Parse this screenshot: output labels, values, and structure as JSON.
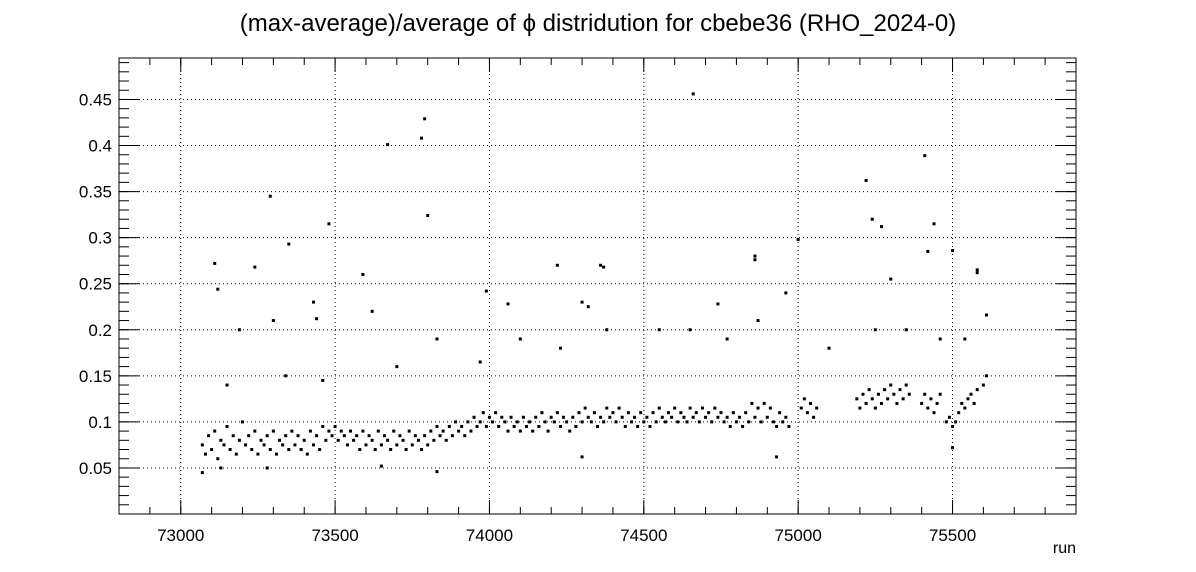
{
  "chart_data": {
    "type": "scatter",
    "title": "(max-average)/average of ϕ distridution for cbebe36 (RHO_2024-0)",
    "xlabel": "run",
    "ylabel": "",
    "xlim": [
      72800,
      75900
    ],
    "ylim": [
      0.0,
      0.495
    ],
    "x_ticks": [
      73000,
      73500,
      74000,
      74500,
      75000,
      75500
    ],
    "x_tick_labels": [
      "73000",
      "73500",
      "74000",
      "74500",
      "75000",
      "75500"
    ],
    "y_ticks": [
      0.05,
      0.1,
      0.15,
      0.2,
      0.25,
      0.3,
      0.35,
      0.4,
      0.45
    ],
    "y_tick_labels": [
      "0.05",
      "0.1",
      "0.15",
      "0.2",
      "0.25",
      "0.3",
      "0.35",
      "0.4",
      "0.45"
    ],
    "grid": true,
    "legend": "none",
    "marker_color": "#000000",
    "series": [
      {
        "values_note_free": true,
        "points": [
          [
            73070,
            0.075
          ],
          [
            73080,
            0.065
          ],
          [
            73090,
            0.085
          ],
          [
            73100,
            0.07
          ],
          [
            73110,
            0.09
          ],
          [
            73120,
            0.06
          ],
          [
            73130,
            0.08
          ],
          [
            73140,
            0.075
          ],
          [
            73150,
            0.095
          ],
          [
            73160,
            0.07
          ],
          [
            73170,
            0.085
          ],
          [
            73180,
            0.065
          ],
          [
            73190,
            0.08
          ],
          [
            73200,
            0.1
          ],
          [
            73210,
            0.075
          ],
          [
            73220,
            0.085
          ],
          [
            73230,
            0.07
          ],
          [
            73240,
            0.09
          ],
          [
            73250,
            0.065
          ],
          [
            73260,
            0.08
          ],
          [
            73270,
            0.075
          ],
          [
            73280,
            0.085
          ],
          [
            73290,
            0.07
          ],
          [
            73300,
            0.09
          ],
          [
            73310,
            0.065
          ],
          [
            73320,
            0.08
          ],
          [
            73330,
            0.075
          ],
          [
            73340,
            0.085
          ],
          [
            73350,
            0.07
          ],
          [
            73360,
            0.09
          ],
          [
            73370,
            0.075
          ],
          [
            73380,
            0.085
          ],
          [
            73390,
            0.07
          ],
          [
            73400,
            0.08
          ],
          [
            73410,
            0.065
          ],
          [
            73420,
            0.09
          ],
          [
            73430,
            0.075
          ],
          [
            73440,
            0.085
          ],
          [
            73450,
            0.07
          ],
          [
            73460,
            0.095
          ],
          [
            73470,
            0.08
          ],
          [
            73480,
            0.09
          ],
          [
            73490,
            0.085
          ],
          [
            73500,
            0.095
          ],
          [
            73510,
            0.08
          ],
          [
            73520,
            0.09
          ],
          [
            73530,
            0.085
          ],
          [
            73540,
            0.075
          ],
          [
            73550,
            0.09
          ],
          [
            73560,
            0.08
          ],
          [
            73570,
            0.085
          ],
          [
            73580,
            0.07
          ],
          [
            73590,
            0.09
          ],
          [
            73600,
            0.075
          ],
          [
            73610,
            0.085
          ],
          [
            73620,
            0.08
          ],
          [
            73630,
            0.07
          ],
          [
            73640,
            0.09
          ],
          [
            73650,
            0.075
          ],
          [
            73660,
            0.085
          ],
          [
            73670,
            0.08
          ],
          [
            73680,
            0.07
          ],
          [
            73690,
            0.09
          ],
          [
            73700,
            0.075
          ],
          [
            73710,
            0.085
          ],
          [
            73720,
            0.08
          ],
          [
            73730,
            0.07
          ],
          [
            73740,
            0.09
          ],
          [
            73750,
            0.075
          ],
          [
            73760,
            0.085
          ],
          [
            73770,
            0.08
          ],
          [
            73780,
            0.07
          ],
          [
            73790,
            0.085
          ],
          [
            73800,
            0.075
          ],
          [
            73810,
            0.09
          ],
          [
            73820,
            0.08
          ],
          [
            73830,
            0.095
          ],
          [
            73840,
            0.085
          ],
          [
            73850,
            0.09
          ],
          [
            73860,
            0.08
          ],
          [
            73870,
            0.095
          ],
          [
            73880,
            0.085
          ],
          [
            73890,
            0.1
          ],
          [
            73900,
            0.09
          ],
          [
            73910,
            0.095
          ],
          [
            73920,
            0.085
          ],
          [
            73930,
            0.1
          ],
          [
            73940,
            0.09
          ],
          [
            73950,
            0.105
          ],
          [
            73960,
            0.095
          ],
          [
            73970,
            0.1
          ],
          [
            73980,
            0.11
          ],
          [
            73990,
            0.095
          ],
          [
            74000,
            0.105
          ],
          [
            74010,
            0.1
          ],
          [
            74020,
            0.11
          ],
          [
            74030,
            0.095
          ],
          [
            74040,
            0.105
          ],
          [
            74050,
            0.1
          ],
          [
            74060,
            0.09
          ],
          [
            74070,
            0.105
          ],
          [
            74080,
            0.095
          ],
          [
            74090,
            0.1
          ],
          [
            74100,
            0.09
          ],
          [
            74110,
            0.105
          ],
          [
            74120,
            0.095
          ],
          [
            74130,
            0.1
          ],
          [
            74140,
            0.09
          ],
          [
            74150,
            0.105
          ],
          [
            74160,
            0.095
          ],
          [
            74170,
            0.11
          ],
          [
            74180,
            0.1
          ],
          [
            74190,
            0.09
          ],
          [
            74200,
            0.105
          ],
          [
            74210,
            0.1
          ],
          [
            74220,
            0.11
          ],
          [
            74230,
            0.095
          ],
          [
            74240,
            0.105
          ],
          [
            74250,
            0.1
          ],
          [
            74260,
            0.09
          ],
          [
            74270,
            0.105
          ],
          [
            74280,
            0.095
          ],
          [
            74290,
            0.11
          ],
          [
            74300,
            0.1
          ],
          [
            74310,
            0.115
          ],
          [
            74320,
            0.105
          ],
          [
            74330,
            0.1
          ],
          [
            74340,
            0.11
          ],
          [
            74350,
            0.095
          ],
          [
            74360,
            0.105
          ],
          [
            74370,
            0.1
          ],
          [
            74380,
            0.115
          ],
          [
            74390,
            0.105
          ],
          [
            74400,
            0.11
          ],
          [
            74410,
            0.1
          ],
          [
            74420,
            0.115
          ],
          [
            74430,
            0.105
          ],
          [
            74440,
            0.095
          ],
          [
            74450,
            0.11
          ],
          [
            74460,
            0.1
          ],
          [
            74470,
            0.105
          ],
          [
            74480,
            0.095
          ],
          [
            74490,
            0.11
          ],
          [
            74500,
            0.1
          ],
          [
            74510,
            0.105
          ],
          [
            74520,
            0.095
          ],
          [
            74530,
            0.11
          ],
          [
            74540,
            0.1
          ],
          [
            74550,
            0.115
          ],
          [
            74560,
            0.105
          ],
          [
            74570,
            0.1
          ],
          [
            74580,
            0.11
          ],
          [
            74590,
            0.105
          ],
          [
            74600,
            0.115
          ],
          [
            74610,
            0.1
          ],
          [
            74620,
            0.11
          ],
          [
            74630,
            0.105
          ],
          [
            74640,
            0.1
          ],
          [
            74650,
            0.115
          ],
          [
            74660,
            0.105
          ],
          [
            74670,
            0.11
          ],
          [
            74680,
            0.1
          ],
          [
            74690,
            0.115
          ],
          [
            74700,
            0.105
          ],
          [
            74710,
            0.11
          ],
          [
            74720,
            0.1
          ],
          [
            74730,
            0.115
          ],
          [
            74740,
            0.105
          ],
          [
            74750,
            0.11
          ],
          [
            74760,
            0.1
          ],
          [
            74770,
            0.105
          ],
          [
            74780,
            0.095
          ],
          [
            74790,
            0.11
          ],
          [
            74800,
            0.1
          ],
          [
            74810,
            0.105
          ],
          [
            74820,
            0.095
          ],
          [
            74830,
            0.11
          ],
          [
            74840,
            0.1
          ],
          [
            74850,
            0.12
          ],
          [
            74860,
            0.105
          ],
          [
            74870,
            0.115
          ],
          [
            74880,
            0.1
          ],
          [
            74890,
            0.12
          ],
          [
            74900,
            0.105
          ],
          [
            74910,
            0.115
          ],
          [
            74920,
            0.1
          ],
          [
            74930,
            0.095
          ],
          [
            74940,
            0.11
          ],
          [
            74950,
            0.1
          ],
          [
            74960,
            0.105
          ],
          [
            74970,
            0.095
          ],
          [
            75010,
            0.115
          ],
          [
            75020,
            0.125
          ],
          [
            75030,
            0.11
          ],
          [
            75040,
            0.12
          ],
          [
            75050,
            0.105
          ],
          [
            75060,
            0.115
          ],
          [
            75190,
            0.125
          ],
          [
            75200,
            0.115
          ],
          [
            75210,
            0.13
          ],
          [
            75220,
            0.12
          ],
          [
            75230,
            0.135
          ],
          [
            75240,
            0.125
          ],
          [
            75250,
            0.115
          ],
          [
            75260,
            0.13
          ],
          [
            75270,
            0.12
          ],
          [
            75280,
            0.135
          ],
          [
            75290,
            0.125
          ],
          [
            75300,
            0.14
          ],
          [
            75310,
            0.13
          ],
          [
            75320,
            0.12
          ],
          [
            75330,
            0.135
          ],
          [
            75340,
            0.125
          ],
          [
            75350,
            0.14
          ],
          [
            75360,
            0.13
          ],
          [
            75400,
            0.12
          ],
          [
            75410,
            0.13
          ],
          [
            75420,
            0.115
          ],
          [
            75430,
            0.125
          ],
          [
            75440,
            0.11
          ],
          [
            75450,
            0.12
          ],
          [
            75460,
            0.13
          ],
          [
            75480,
            0.1
          ],
          [
            75490,
            0.105
          ],
          [
            75500,
            0.095
          ],
          [
            75510,
            0.1
          ],
          [
            75520,
            0.11
          ],
          [
            75530,
            0.12
          ],
          [
            75540,
            0.115
          ],
          [
            75550,
            0.125
          ],
          [
            75560,
            0.13
          ],
          [
            75570,
            0.12
          ],
          [
            75580,
            0.135
          ],
          [
            75600,
            0.14
          ],
          [
            75610,
            0.15
          ],
          [
            73110,
            0.272
          ],
          [
            73120,
            0.244
          ],
          [
            73190,
            0.2
          ],
          [
            73240,
            0.268
          ],
          [
            73290,
            0.345
          ],
          [
            73300,
            0.21
          ],
          [
            73350,
            0.293
          ],
          [
            73430,
            0.23
          ],
          [
            73440,
            0.212
          ],
          [
            73480,
            0.315
          ],
          [
            73590,
            0.26
          ],
          [
            73620,
            0.22
          ],
          [
            73670,
            0.401
          ],
          [
            73780,
            0.408
          ],
          [
            73790,
            0.429
          ],
          [
            73800,
            0.324
          ],
          [
            73990,
            0.242
          ],
          [
            74060,
            0.228
          ],
          [
            74220,
            0.27
          ],
          [
            74300,
            0.23
          ],
          [
            74320,
            0.225
          ],
          [
            74360,
            0.27
          ],
          [
            74370,
            0.268
          ],
          [
            74660,
            0.456
          ],
          [
            74740,
            0.228
          ],
          [
            74860,
            0.28
          ],
          [
            74860,
            0.276
          ],
          [
            74960,
            0.24
          ],
          [
            75000,
            0.298
          ],
          [
            75220,
            0.362
          ],
          [
            75240,
            0.32
          ],
          [
            75270,
            0.312
          ],
          [
            75300,
            0.255
          ],
          [
            75410,
            0.389
          ],
          [
            75420,
            0.285
          ],
          [
            75440,
            0.315
          ],
          [
            75500,
            0.286
          ],
          [
            75580,
            0.265
          ],
          [
            75580,
            0.262
          ],
          [
            75610,
            0.216
          ],
          [
            73070,
            0.045
          ],
          [
            73130,
            0.05
          ],
          [
            73280,
            0.05
          ],
          [
            73650,
            0.052
          ],
          [
            73830,
            0.046
          ],
          [
            74300,
            0.062
          ],
          [
            74930,
            0.062
          ],
          [
            75500,
            0.072
          ],
          [
            73150,
            0.14
          ],
          [
            73340,
            0.15
          ],
          [
            73460,
            0.145
          ],
          [
            73700,
            0.16
          ],
          [
            73830,
            0.19
          ],
          [
            73970,
            0.165
          ],
          [
            74100,
            0.19
          ],
          [
            74230,
            0.18
          ],
          [
            74380,
            0.2
          ],
          [
            74550,
            0.2
          ],
          [
            74650,
            0.2
          ],
          [
            74770,
            0.19
          ],
          [
            74870,
            0.21
          ],
          [
            75100,
            0.18
          ],
          [
            75250,
            0.2
          ],
          [
            75350,
            0.2
          ],
          [
            75460,
            0.19
          ],
          [
            75540,
            0.19
          ]
        ]
      }
    ]
  }
}
